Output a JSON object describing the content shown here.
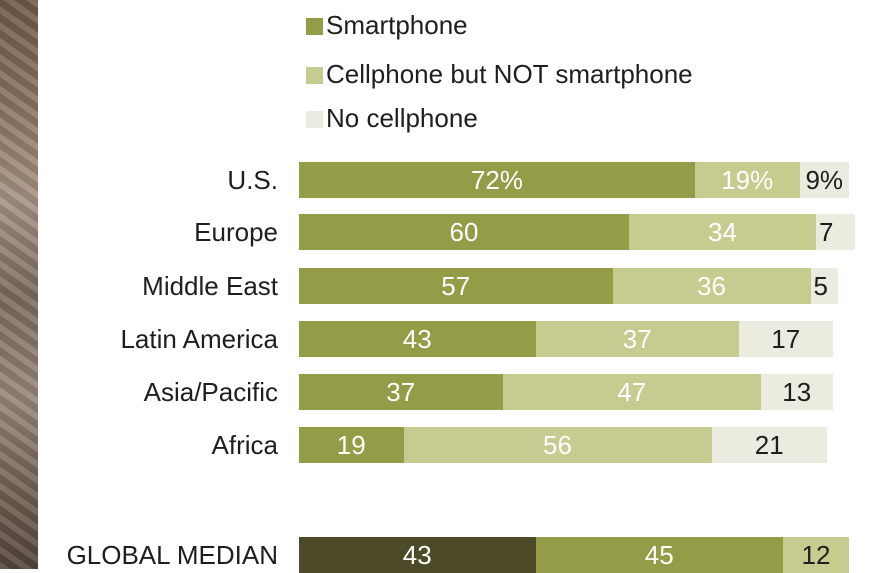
{
  "colors": {
    "smartphone": "#949c47",
    "cellphone": "#c6cc90",
    "none": "#ebebdf",
    "global_smartphone": "#4c4a28",
    "global_cellphone": "#949c47"
  },
  "chart_data": {
    "type": "bar",
    "orientation": "horizontal",
    "stacked": true,
    "title": "",
    "xlabel": "",
    "ylabel": "",
    "xlim": [
      0,
      100
    ],
    "legend_position": "top",
    "grid": false,
    "series": [
      {
        "name": "Smartphone",
        "values": [
          72,
          60,
          57,
          43,
          37,
          19,
          43
        ]
      },
      {
        "name": "Cellphone but NOT smartphone",
        "values": [
          19,
          34,
          36,
          37,
          47,
          56,
          45
        ]
      },
      {
        "name": "No cellphone",
        "values": [
          9,
          7,
          5,
          17,
          13,
          21,
          12
        ]
      }
    ],
    "categories": [
      "U.S.",
      "Europe",
      "Middle East",
      "Latin America",
      "Asia/Pacific",
      "Africa",
      "GLOBAL MEDIAN"
    ],
    "data_labels": [
      [
        "72%",
        "19%",
        "9%"
      ],
      [
        "60",
        "34",
        "7"
      ],
      [
        "57",
        "36",
        "5"
      ],
      [
        "43",
        "37",
        "17"
      ],
      [
        "37",
        "47",
        "13"
      ],
      [
        "19",
        "56",
        "21"
      ],
      [
        "43",
        "45",
        "12"
      ]
    ]
  }
}
